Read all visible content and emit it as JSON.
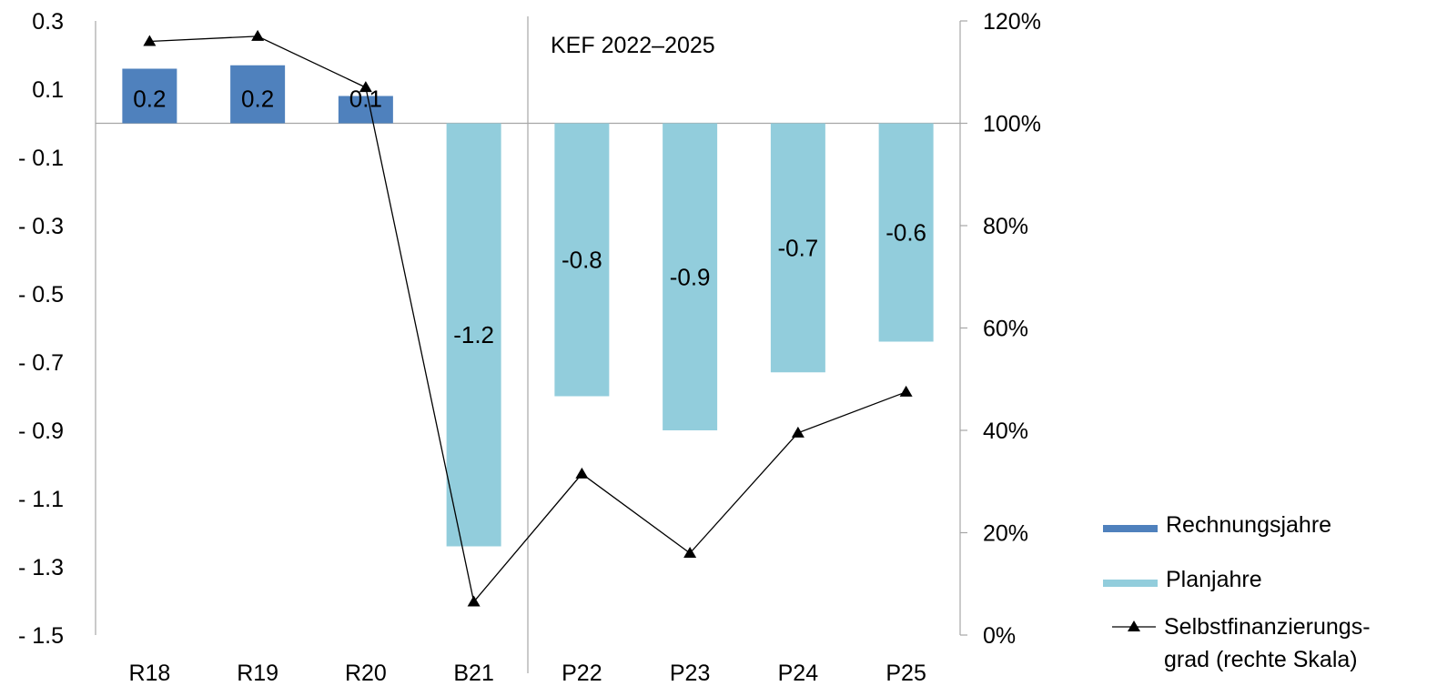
{
  "chart_data": {
    "type": "bar",
    "annotation": "KEF 2022–2025",
    "categories": [
      "R18",
      "R19",
      "R20",
      "B21",
      "P22",
      "P23",
      "P24",
      "P25"
    ],
    "series": [
      {
        "name": "Rechnungsjahre",
        "axis": "left",
        "color": "#4f81bd",
        "values": [
          0.16,
          0.17,
          0.08,
          null,
          null,
          null,
          null,
          null
        ],
        "labels": [
          "0.2",
          "0.2",
          "0.1",
          null,
          null,
          null,
          null,
          null
        ]
      },
      {
        "name": "Planjahre",
        "axis": "left",
        "color": "#92cddc",
        "values": [
          null,
          null,
          null,
          -1.24,
          -0.8,
          -0.9,
          -0.73,
          -0.64
        ],
        "labels": [
          null,
          null,
          null,
          "-1.2",
          "-0.8",
          "-0.9",
          "-0.7",
          "-0.6"
        ]
      },
      {
        "name": "Selbstfinanzierungs-grad (rechte Skala)",
        "legend_lines": [
          "Selbstfinanzierungs-",
          "grad (rechte Skala)"
        ],
        "type": "line",
        "axis": "right",
        "marker": "triangle",
        "color": "#000000",
        "values": [
          116,
          117,
          107,
          6.5,
          31.5,
          16,
          39.5,
          47.5
        ]
      }
    ],
    "y_left": {
      "ylim": [
        -1.5,
        0.3
      ],
      "ticks": [
        0.3,
        0.1,
        -0.1,
        -0.3,
        -0.5,
        -0.7,
        -0.9,
        -1.1,
        -1.3,
        -1.5
      ],
      "tick_labels": [
        "0.3",
        "0.1",
        "- 0.1",
        "- 0.3",
        "- 0.5",
        "- 0.7",
        "- 0.9",
        "- 1.1",
        "- 1.3",
        "- 1.5"
      ]
    },
    "y_right": {
      "ylim": [
        0,
        120
      ],
      "ticks": [
        120,
        100,
        80,
        60,
        40,
        20,
        0
      ],
      "tick_labels": [
        "120%",
        "100%",
        "80%",
        "60%",
        "40%",
        "20%",
        "0%"
      ]
    },
    "separator_after_category": "B21",
    "legend_position": "bottom-right",
    "grid": false
  }
}
